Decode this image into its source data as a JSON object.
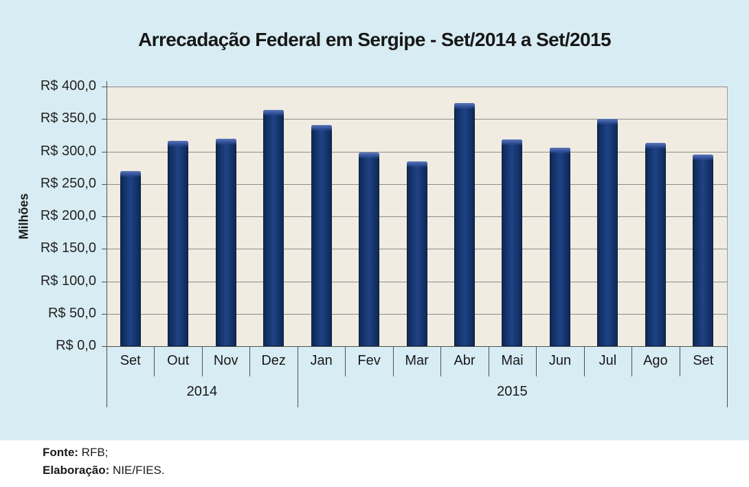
{
  "chart_data": {
    "type": "bar",
    "title": "Arrecadação Federal em Sergipe - Set/2014 a Set/2015",
    "ylabel": "Milhões",
    "categories": [
      "Set",
      "Out",
      "Nov",
      "Dez",
      "Jan",
      "Fev",
      "Mar",
      "Abr",
      "Mai",
      "Jun",
      "Jul",
      "Ago",
      "Set"
    ],
    "values": [
      270,
      316,
      320,
      364,
      341,
      298,
      285,
      375,
      319,
      306,
      350,
      313,
      295
    ],
    "year_groups": [
      {
        "label": "2014",
        "span": 4
      },
      {
        "label": "2015",
        "span": 9
      }
    ],
    "y_ticks": [
      "R$ 400,0",
      "R$ 350,0",
      "R$ 300,0",
      "R$ 250,0",
      "R$ 200,0",
      "R$ 150,0",
      "R$ 100,0",
      "R$ 50,0",
      "R$ 0,0"
    ],
    "ylim": [
      0,
      400
    ],
    "y_tick_step": 50,
    "grid": true,
    "legend": false,
    "unit": "R$ millions"
  },
  "colors": {
    "card_background": "#d8ecf3",
    "plot_background": "#f0ece2",
    "bar_fill": "#143369",
    "bar_highlight": "#5b78ba",
    "gridline": "#8a8a8a",
    "axis_line": "#4d4d4d",
    "text": "#181818"
  },
  "footer": {
    "fonte_label": "Fonte:",
    "fonte_value": " RFB;",
    "elaboracao_label": "Elaboração:",
    "elaboracao_value": " NIE/FIES."
  }
}
